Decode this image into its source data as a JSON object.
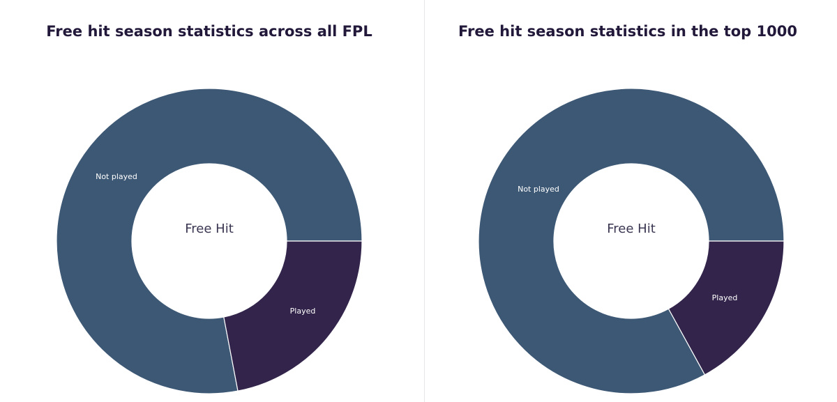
{
  "chart_data": [
    {
      "type": "pie",
      "title": "Free hit season statistics across all FPL",
      "center_label": "Free Hit",
      "categories": [
        "Not played",
        "Played"
      ],
      "values": [
        78,
        22
      ],
      "colors": [
        "#3d5875",
        "#32244a"
      ]
    },
    {
      "type": "pie",
      "title": "Free hit season statistics in the top 1000",
      "center_label": "Free Hit",
      "categories": [
        "Not played",
        "Played"
      ],
      "values": [
        83,
        17
      ],
      "colors": [
        "#3d5875",
        "#32244a"
      ]
    }
  ]
}
